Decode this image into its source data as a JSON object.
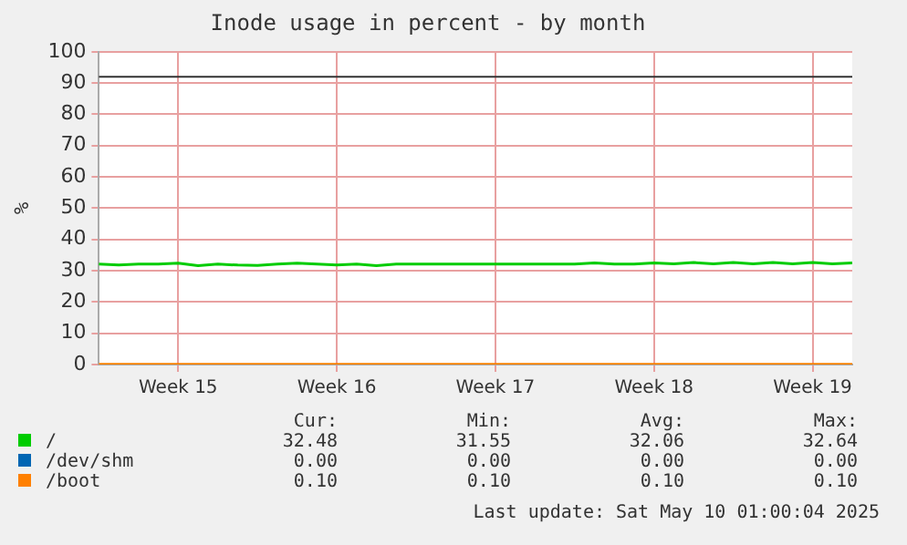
{
  "chart_data": {
    "type": "line",
    "title": "Inode usage in percent - by month",
    "ylabel": "%",
    "categories": [
      null,
      null,
      null,
      null,
      "Week 15",
      null,
      null,
      null,
      null,
      null,
      null,
      null,
      "Week 16",
      null,
      null,
      null,
      null,
      null,
      null,
      null,
      "Week 17",
      null,
      null,
      null,
      null,
      null,
      null,
      null,
      "Week 18",
      null,
      null,
      null,
      null,
      null,
      null,
      null,
      "Week 19",
      null,
      null
    ],
    "ylim": [
      0,
      100
    ],
    "yticks": [
      0,
      10,
      20,
      30,
      40,
      50,
      60,
      70,
      80,
      90,
      100
    ],
    "grid": true,
    "legend": "bottom",
    "marker": "none",
    "line_style": "solid",
    "series": [
      {
        "name": "/",
        "color": "#00cc00",
        "values": [
          32.1,
          31.8,
          32.1,
          32.1,
          32.4,
          31.6,
          32.1,
          31.8,
          31.7,
          32.1,
          32.4,
          32.1,
          31.8,
          32.1,
          31.6,
          32.1,
          32.1,
          32.1,
          32.1,
          32.1,
          32.1,
          32.1,
          32.1,
          32.1,
          32.1,
          32.5,
          32.1,
          32.1,
          32.5,
          32.2,
          32.6,
          32.2,
          32.6,
          32.2,
          32.6,
          32.2,
          32.6,
          32.2,
          32.5
        ]
      },
      {
        "name": "/dev/shm",
        "color": "#0066b3",
        "values": [
          null,
          null,
          null,
          null,
          null,
          null,
          null,
          null,
          null,
          null,
          null,
          null,
          null,
          null,
          null,
          null,
          null,
          null,
          null,
          null,
          null,
          null,
          null,
          null,
          null,
          null,
          null,
          null,
          null,
          null,
          null,
          null,
          null,
          null,
          null,
          null,
          null,
          null,
          null
        ]
      },
      {
        "name": "/boot",
        "color": "#ff8000",
        "values": [
          0.1,
          0.1,
          0.1,
          0.1,
          0.1,
          0.1,
          0.1,
          0.1,
          0.1,
          0.1,
          0.1,
          0.1,
          0.1,
          0.1,
          0.1,
          0.1,
          0.1,
          0.1,
          0.1,
          0.1,
          0.1,
          0.1,
          0.1,
          0.1,
          0.1,
          0.1,
          0.1,
          0.1,
          0.1,
          0.1,
          0.1,
          0.1,
          0.1,
          0.1,
          0.1,
          0.1,
          0.1,
          0.1,
          0.1
        ]
      }
    ],
    "ref_lines": [
      {
        "axis": "y",
        "value": 92,
        "color": "#333333"
      }
    ],
    "annotations": [
      "Cur:",
      "Min:",
      "Avg:",
      "Max:",
      "32.48",
      "31.55",
      "32.06",
      "32.64",
      "0.00",
      "0.00",
      "0.00",
      "0.00",
      "0.10",
      "0.10",
      "0.10",
      "0.10",
      "Last update: Sat May 10 01:00:04 2025"
    ]
  }
}
